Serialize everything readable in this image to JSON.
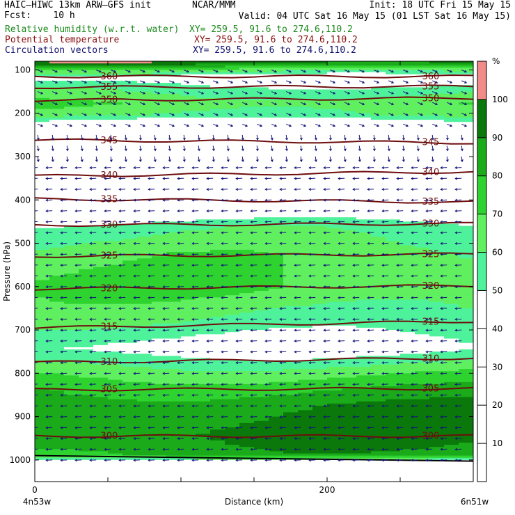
{
  "header": {
    "model": "HAIC–HIWC 13km ARW–GFS init",
    "org": "NCAR/MMM",
    "init": "Init: 18 UTC Fri 15 May 15",
    "fcst": "Fcst:    10 h",
    "valid": "Valid: 04 UTC Sat 16 May 15 (01 LST Sat 16 May 15)"
  },
  "fields": [
    {
      "label": "Relative humidity (w.r.t. water)",
      "xy": "XY= 259.5, 91.6 to 274.6,110.2",
      "color": "#1a8a1a"
    },
    {
      "label": "Potential temperature",
      "xy": "XY= 259.5, 91.6 to 274.6,110.2",
      "color": "#8b1010"
    },
    {
      "label": "Circulation vectors",
      "xy": "XY= 259.5, 91.6 to 274.6,110.2",
      "color": "#10106e"
    }
  ],
  "colors": {
    "theta": "#6e0d0d",
    "vector": "#14147a",
    "rh": [
      "#ffffff",
      "#ffffff",
      "#ffffff",
      "#ffffff",
      "#ffffff",
      "#4ef29a",
      "#5fef5f",
      "#2fd32f",
      "#1aaa1a",
      "#0a780a",
      "#f28a8a"
    ]
  },
  "chart_data": {
    "type": "heatmap",
    "title": "",
    "xlabel": "Distance (km)",
    "ylabel": "Pressure (hPa)",
    "xlim": [
      0,
      300
    ],
    "ylim": [
      1050,
      80
    ],
    "x_ticks": [
      0,
      200
    ],
    "x_end_labels": [
      "4n53w",
      "6n51w"
    ],
    "y_ticks": [
      100,
      200,
      300,
      400,
      500,
      600,
      700,
      800,
      900,
      1000
    ],
    "colorbar": {
      "unit": "%",
      "levels": [
        10,
        20,
        30,
        40,
        50,
        60,
        70,
        80,
        90,
        100
      ],
      "bins": [
        {
          "lo": 0,
          "hi": 50,
          "color": "#ffffff"
        },
        {
          "lo": 50,
          "hi": 60,
          "color": "#4ef29a"
        },
        {
          "lo": 60,
          "hi": 70,
          "color": "#5fef5f"
        },
        {
          "lo": 70,
          "hi": 80,
          "color": "#2fd32f"
        },
        {
          "lo": 80,
          "hi": 90,
          "color": "#1aaa1a"
        },
        {
          "lo": 90,
          "hi": 100,
          "color": "#0a780a"
        },
        {
          "lo": 100,
          "hi": 110,
          "color": "#f28a8a"
        }
      ]
    },
    "rh_profile": [
      {
        "p": 80,
        "rh": 95
      },
      {
        "p": 115,
        "rh": 40
      },
      {
        "p": 140,
        "rh": 55
      },
      {
        "p": 175,
        "rh": 68
      },
      {
        "p": 200,
        "rh": 62
      },
      {
        "p": 230,
        "rh": 30
      },
      {
        "p": 420,
        "rh": 35
      },
      {
        "p": 460,
        "rh": 55
      },
      {
        "p": 520,
        "rh": 65
      },
      {
        "p": 600,
        "rh": 70
      },
      {
        "p": 680,
        "rh": 58
      },
      {
        "p": 740,
        "rh": 45
      },
      {
        "p": 790,
        "rh": 65
      },
      {
        "p": 830,
        "rh": 78
      },
      {
        "p": 870,
        "rh": 88
      },
      {
        "p": 940,
        "rh": 92
      },
      {
        "p": 985,
        "rh": 84
      },
      {
        "p": 1010,
        "rh": 20
      }
    ],
    "theta_lines": [
      {
        "theta": 360,
        "p_left": 115,
        "p_right": 115
      },
      {
        "theta": 355,
        "p_left": 140,
        "p_right": 138
      },
      {
        "theta": 350,
        "p_left": 170,
        "p_right": 165
      },
      {
        "theta": 345,
        "p_left": 262,
        "p_right": 268
      },
      {
        "theta": 340,
        "p_left": 345,
        "p_right": 335
      },
      {
        "theta": 335,
        "p_left": 398,
        "p_right": 405
      },
      {
        "theta": 330,
        "p_left": 458,
        "p_right": 455
      },
      {
        "theta": 325,
        "p_left": 530,
        "p_right": 525
      },
      {
        "theta": 320,
        "p_left": 605,
        "p_right": 598
      },
      {
        "theta": 315,
        "p_left": 695,
        "p_right": 680
      },
      {
        "theta": 310,
        "p_left": 775,
        "p_right": 765
      },
      {
        "theta": 305,
        "p_left": 838,
        "p_right": 835
      },
      {
        "theta": 300,
        "p_left": 945,
        "p_right": 945
      }
    ],
    "terrain_p": 990
  }
}
